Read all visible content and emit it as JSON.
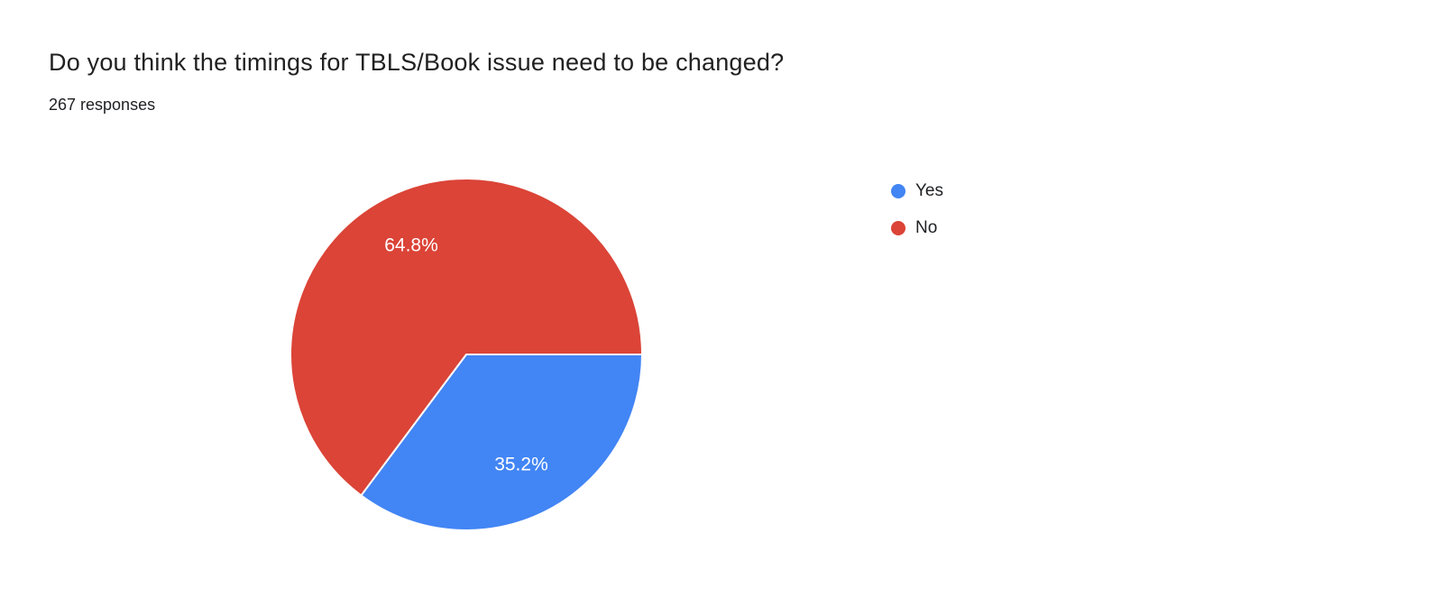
{
  "header": {
    "title": "Do you think the timings for TBLS/Book issue need to be changed?",
    "responses": "267 responses"
  },
  "chart_data": {
    "type": "pie",
    "title": "Do you think the timings for TBLS/Book issue need to be changed?",
    "responses_count": 267,
    "series": [
      {
        "label": "Yes",
        "value": 35.2,
        "percent_label": "35.2%",
        "color": "#4285f4"
      },
      {
        "label": "No",
        "value": 64.8,
        "percent_label": "64.8%",
        "color": "#db4437"
      }
    ],
    "start_angle_deg": 0,
    "direction": "clockwise",
    "slice_label_format": "percent",
    "legend_position": "right",
    "label_text_color": "#ffffff"
  }
}
